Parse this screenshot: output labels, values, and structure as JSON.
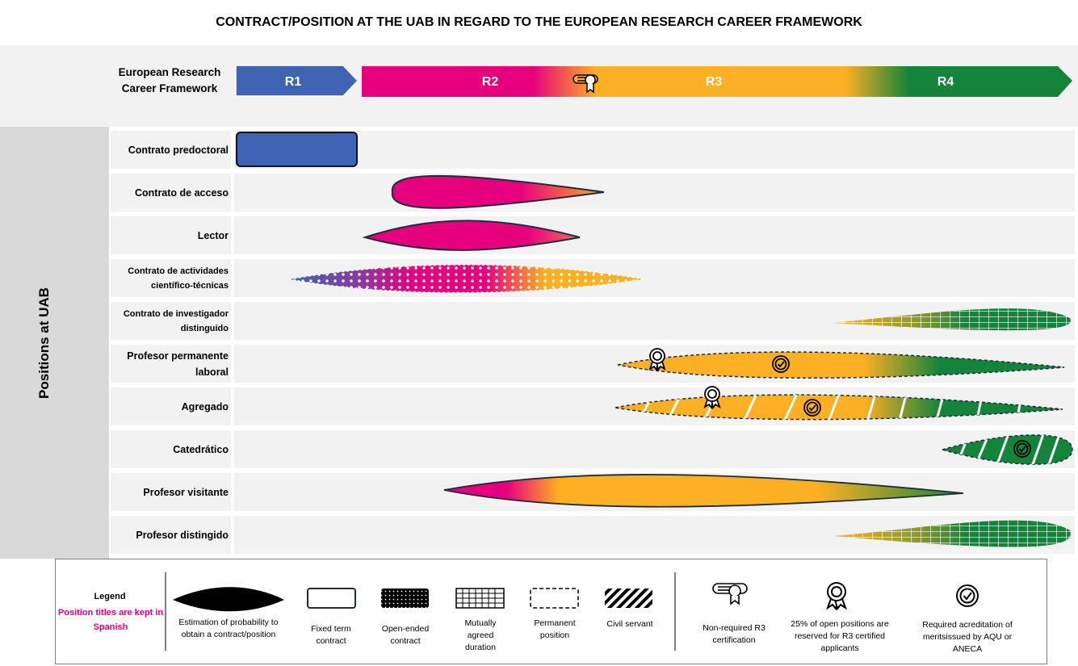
{
  "title": "CONTRACT/POSITION AT THE UAB IN REGARD TO THE EUROPEAN RESEARCH CAREER FRAMEWORK",
  "framework": {
    "label": "European Research Career Framework",
    "stages": [
      "R1",
      "R2",
      "R3",
      "R4"
    ]
  },
  "side_label": "Positions at UAB",
  "rows": [
    {
      "label": "Contrato predoctoral"
    },
    {
      "label": "Contrato de acceso"
    },
    {
      "label": "Lector"
    },
    {
      "label": "Contrato de actividades científico-técnicas"
    },
    {
      "label": "Contrato de investigador distinguido"
    },
    {
      "label": "Profesor permanente laboral"
    },
    {
      "label": "Agregado"
    },
    {
      "label": "Catedrático"
    },
    {
      "label": "Profesor visitante"
    },
    {
      "label": "Profesor distingido"
    }
  ],
  "legend": {
    "title": "Legend",
    "note": "Position titles are kept in Spanish",
    "items": [
      "Estimation of probability to obtain a contract/position",
      "Fixed term contract",
      "Open-ended contract",
      "Mutually agreed duration",
      "Permanent position",
      "Civil servant",
      "Non-required R3 certification",
      "25% of open positions are reserved for R3 certified applicants",
      "Required acreditation of meritsissued by AQU or ANECA"
    ]
  },
  "colors": {
    "R1": "#3e64b3",
    "R2": "#e6007e",
    "R3": "#fdb023",
    "R4": "#14843a",
    "outline": "#1f2d3d"
  }
}
